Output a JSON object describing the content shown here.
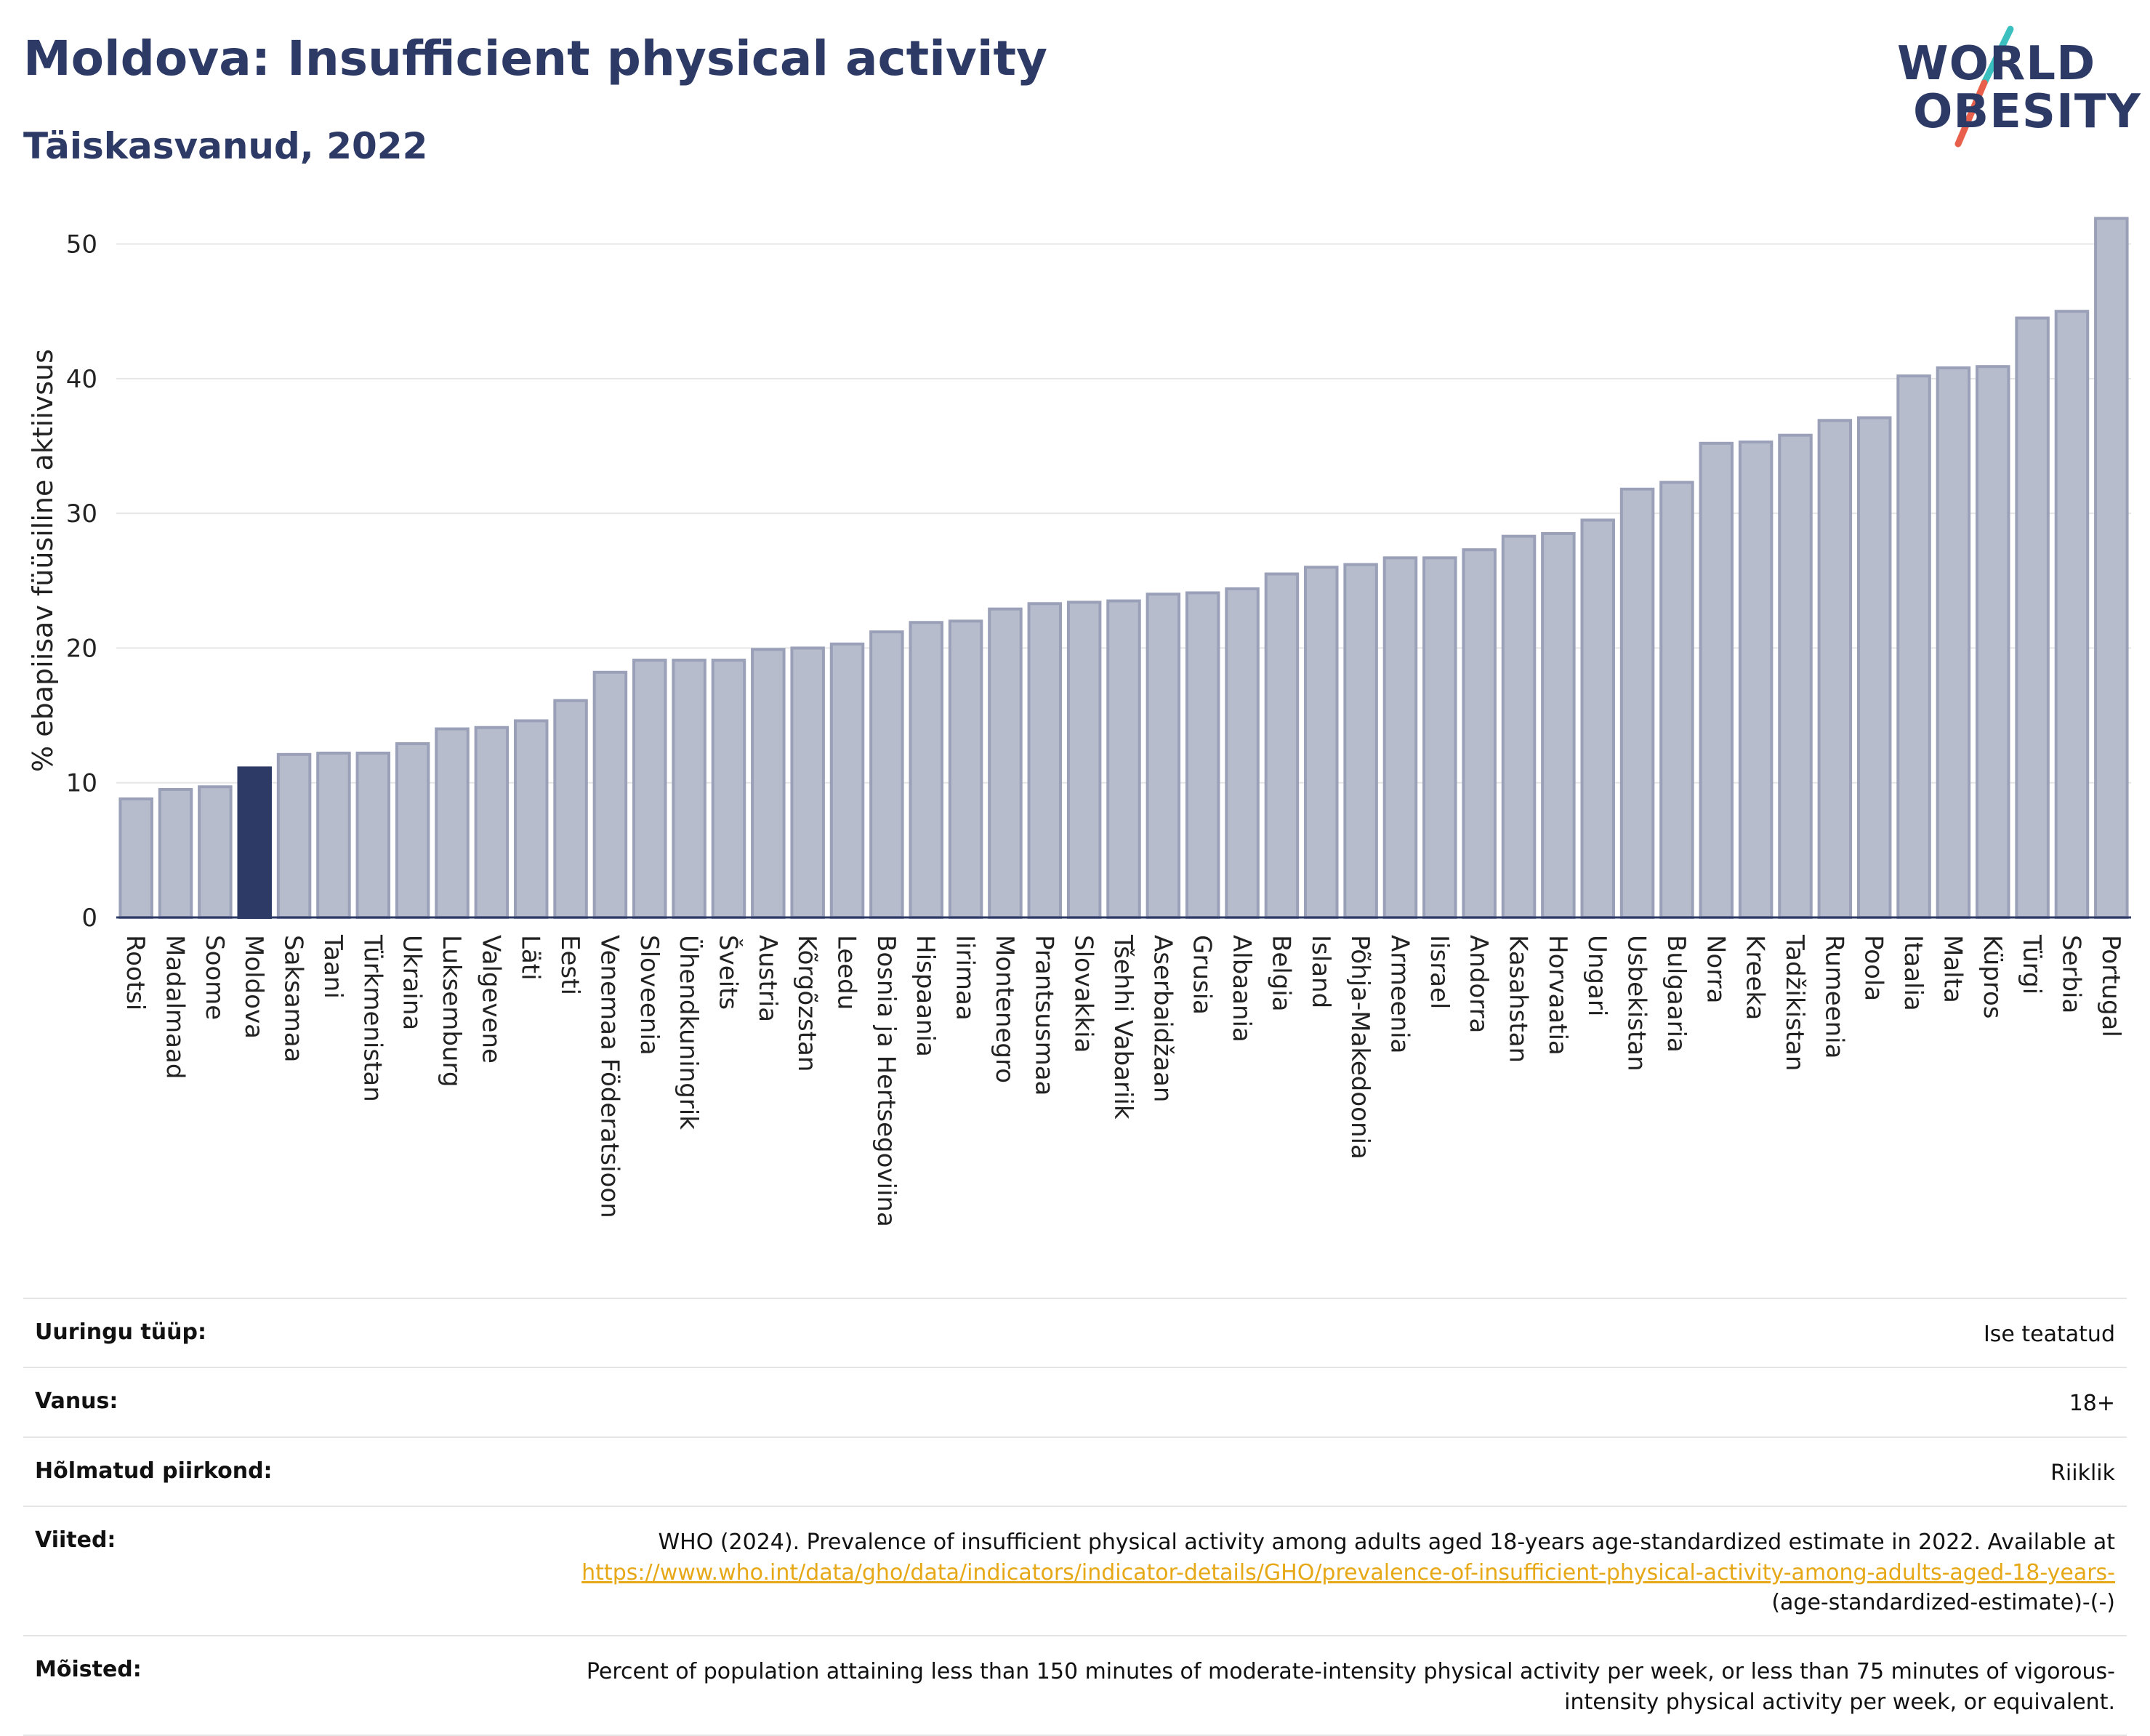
{
  "header": {
    "title": "Moldova: Insufficient physical activity",
    "subtitle": "Täiskasvanud, 2022"
  },
  "logo": {
    "line1": "WORLD",
    "line2": "OBESITY",
    "colors": {
      "text": "#2d3a66",
      "slash_top": "#3bbfbf",
      "slash_bottom": "#e8604c"
    }
  },
  "chart_data": {
    "type": "bar",
    "ylabel": "% ebapiisav füüsiline aktiivsus",
    "ylim": [
      0,
      53
    ],
    "yticks": [
      0,
      10,
      20,
      30,
      40,
      50
    ],
    "grid": true,
    "highlight": "Moldova",
    "colors": {
      "bar": "#b7bccd",
      "bar_edge": "#9aa0b8",
      "highlight": "#2d3a66",
      "grid": "#e6e6e6"
    },
    "categories": [
      "Rootsi",
      "Madalmaad",
      "Soome",
      "Moldova",
      "Saksamaa",
      "Taani",
      "Türkmenistan",
      "Ukraina",
      "Luksemburg",
      "Valgevene",
      "Läti",
      "Eesti",
      "Venemaa Föderatsioon",
      "Sloveenia",
      "Ühendkuningrik",
      "Šveits",
      "Austria",
      "Kõrgõzstan",
      "Leedu",
      "Bosnia ja Hertsegoviina",
      "Hispaania",
      "Iirimaa",
      "Montenegro",
      "Prantsusmaa",
      "Slovakkia",
      "Tšehhi Vabariik",
      "Aserbaidžaan",
      "Grusia",
      "Albaania",
      "Belgia",
      "Island",
      "Põhja-Makedoonia",
      "Armeenia",
      "Iisrael",
      "Andorra",
      "Kasahstan",
      "Horvaatia",
      "Ungari",
      "Usbekistan",
      "Bulgaaria",
      "Norra",
      "Kreeka",
      "Tadžikistan",
      "Rumeenia",
      "Poola",
      "Itaalia",
      "Malta",
      "Küpros",
      "Türgi",
      "Serbia",
      "Portugal"
    ],
    "values": [
      8.8,
      9.5,
      9.7,
      11.1,
      12.1,
      12.2,
      12.2,
      12.9,
      14.0,
      14.1,
      14.6,
      16.1,
      18.2,
      19.1,
      19.1,
      19.1,
      19.9,
      20.0,
      20.3,
      21.2,
      21.9,
      22.0,
      22.9,
      23.3,
      23.4,
      23.5,
      24.0,
      24.1,
      24.4,
      25.5,
      26.0,
      26.2,
      26.7,
      26.7,
      27.3,
      28.3,
      28.5,
      29.5,
      31.8,
      32.3,
      35.2,
      35.3,
      35.8,
      36.9,
      37.1,
      40.2,
      40.8,
      40.9,
      44.5,
      45.0,
      51.9
    ]
  },
  "meta": {
    "rows": [
      {
        "label": "Uuringu tüüp:",
        "value": "Ise teatatud"
      },
      {
        "label": "Vanus:",
        "value": "18+"
      },
      {
        "label": "Hõlmatud piirkond:",
        "value": "Riiklik"
      }
    ],
    "references": {
      "label": "Viited:",
      "text_before": "WHO (2024). Prevalence of insufficient physical activity among adults aged 18-years age-standardized estimate in 2022. Available at",
      "link_text": "https://www.who.int/data/gho/data/indicators/indicator-details/GHO/prevalence-of-insufficient-physical-activity-among-adults-aged-18-years-",
      "text_after": "(age-standardized-estimate)-(-)"
    },
    "definitions": {
      "label": "Mõisted:",
      "text": "Percent of population attaining less than 150 minutes of moderate-intensity physical activity per week, or less than 75 minutes of vigorous-intensity physical activity per week, or equivalent."
    }
  }
}
